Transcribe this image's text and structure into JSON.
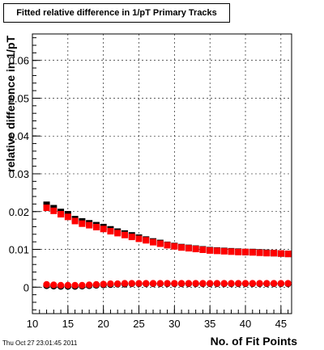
{
  "chart_data": {
    "type": "scatter",
    "title": "Fitted relative difference in 1/pT Primary Tracks",
    "xlabel": "No. of Fit Points",
    "ylabel": "relative difference in 1/pT",
    "xlim": [
      10,
      46.5
    ],
    "ylim": [
      -0.007,
      0.067
    ],
    "x_ticks": [
      10,
      15,
      20,
      25,
      30,
      35,
      40,
      45
    ],
    "y_ticks": [
      0,
      0.01,
      0.02,
      0.03,
      0.04,
      0.05,
      0.06
    ],
    "x_tick_labels": [
      "10",
      "15",
      "20",
      "25",
      "30",
      "35",
      "40",
      "45"
    ],
    "y_tick_labels": [
      "0",
      "0.01",
      "0.02",
      "0.03",
      "0.04",
      "0.05",
      "0.06"
    ],
    "grid": true,
    "legend": "none",
    "series": [
      {
        "marker": "square",
        "color": "#000000",
        "x": [
          12,
          13,
          14,
          15,
          16,
          17,
          18,
          19,
          20,
          21,
          22,
          23,
          24,
          25,
          26,
          27,
          28,
          29,
          30,
          31,
          32,
          33,
          34,
          35,
          36,
          37,
          38,
          39,
          40,
          41,
          42,
          43,
          44,
          45,
          46
        ],
        "values": [
          0.0218,
          0.0209,
          0.0199,
          0.0193,
          0.018,
          0.0174,
          0.0169,
          0.0164,
          0.0159,
          0.0153,
          0.0147,
          0.0142,
          0.0137,
          0.0131,
          0.0126,
          0.0121,
          0.0117,
          0.0112,
          0.0109,
          0.0106,
          0.0104,
          0.0102,
          0.01,
          0.0098,
          0.0097,
          0.0096,
          0.0095,
          0.0094,
          0.0093,
          0.0093,
          0.0092,
          0.0091,
          0.009,
          0.0089,
          0.0088
        ]
      },
      {
        "marker": "square",
        "color": "#ff0000",
        "x": [
          12,
          13,
          14,
          15,
          16,
          17,
          18,
          19,
          20,
          21,
          22,
          23,
          24,
          25,
          26,
          27,
          28,
          29,
          30,
          31,
          32,
          33,
          34,
          35,
          36,
          37,
          38,
          39,
          40,
          41,
          42,
          43,
          44,
          45,
          46
        ],
        "values": [
          0.021,
          0.0202,
          0.0193,
          0.0186,
          0.0175,
          0.0168,
          0.0164,
          0.0159,
          0.0154,
          0.0148,
          0.0143,
          0.0138,
          0.0133,
          0.0128,
          0.0124,
          0.0119,
          0.0115,
          0.0111,
          0.0108,
          0.0105,
          0.0103,
          0.0101,
          0.0099,
          0.0097,
          0.0096,
          0.0095,
          0.0094,
          0.0093,
          0.0093,
          0.0092,
          0.0091,
          0.009,
          0.009,
          0.0089,
          0.0088
        ]
      },
      {
        "marker": "circle",
        "color": "#000000",
        "x": [
          12,
          13,
          14,
          15,
          16,
          17,
          18,
          19,
          20,
          21,
          22,
          23,
          24,
          25,
          26,
          27,
          28,
          29,
          30,
          31,
          32,
          33,
          34,
          35,
          36,
          37,
          38,
          39,
          40,
          41,
          42,
          43,
          44,
          45,
          46
        ],
        "values": [
          0.0004,
          0.0003,
          0.0002,
          0.0002,
          0.0002,
          0.0003,
          0.0004,
          0.0005,
          0.0006,
          0.0007,
          0.0008,
          0.0008,
          0.0009,
          0.0009,
          0.0009,
          0.0009,
          0.0009,
          0.0009,
          0.0009,
          0.0009,
          0.0009,
          0.0009,
          0.0009,
          0.0009,
          0.0009,
          0.0009,
          0.0009,
          0.0009,
          0.0009,
          0.0009,
          0.0009,
          0.0009,
          0.0009,
          0.0009,
          0.0009
        ]
      },
      {
        "marker": "circle",
        "color": "#ff0000",
        "x": [
          12,
          13,
          14,
          15,
          16,
          17,
          18,
          19,
          20,
          21,
          22,
          23,
          24,
          25,
          26,
          27,
          28,
          29,
          30,
          31,
          32,
          33,
          34,
          35,
          36,
          37,
          38,
          39,
          40,
          41,
          42,
          43,
          44,
          45,
          46
        ],
        "values": [
          0.0007,
          0.0006,
          0.0005,
          0.0005,
          0.0005,
          0.0005,
          0.0006,
          0.0007,
          0.0008,
          0.0009,
          0.0009,
          0.001,
          0.001,
          0.001,
          0.001,
          0.001,
          0.001,
          0.001,
          0.001,
          0.001,
          0.001,
          0.001,
          0.001,
          0.001,
          0.001,
          0.001,
          0.001,
          0.001,
          0.001,
          0.001,
          0.001,
          0.001,
          0.001,
          0.001,
          0.001
        ]
      }
    ]
  },
  "footer": {
    "timestamp": "Thu Oct 27 23:01:45 2011"
  }
}
